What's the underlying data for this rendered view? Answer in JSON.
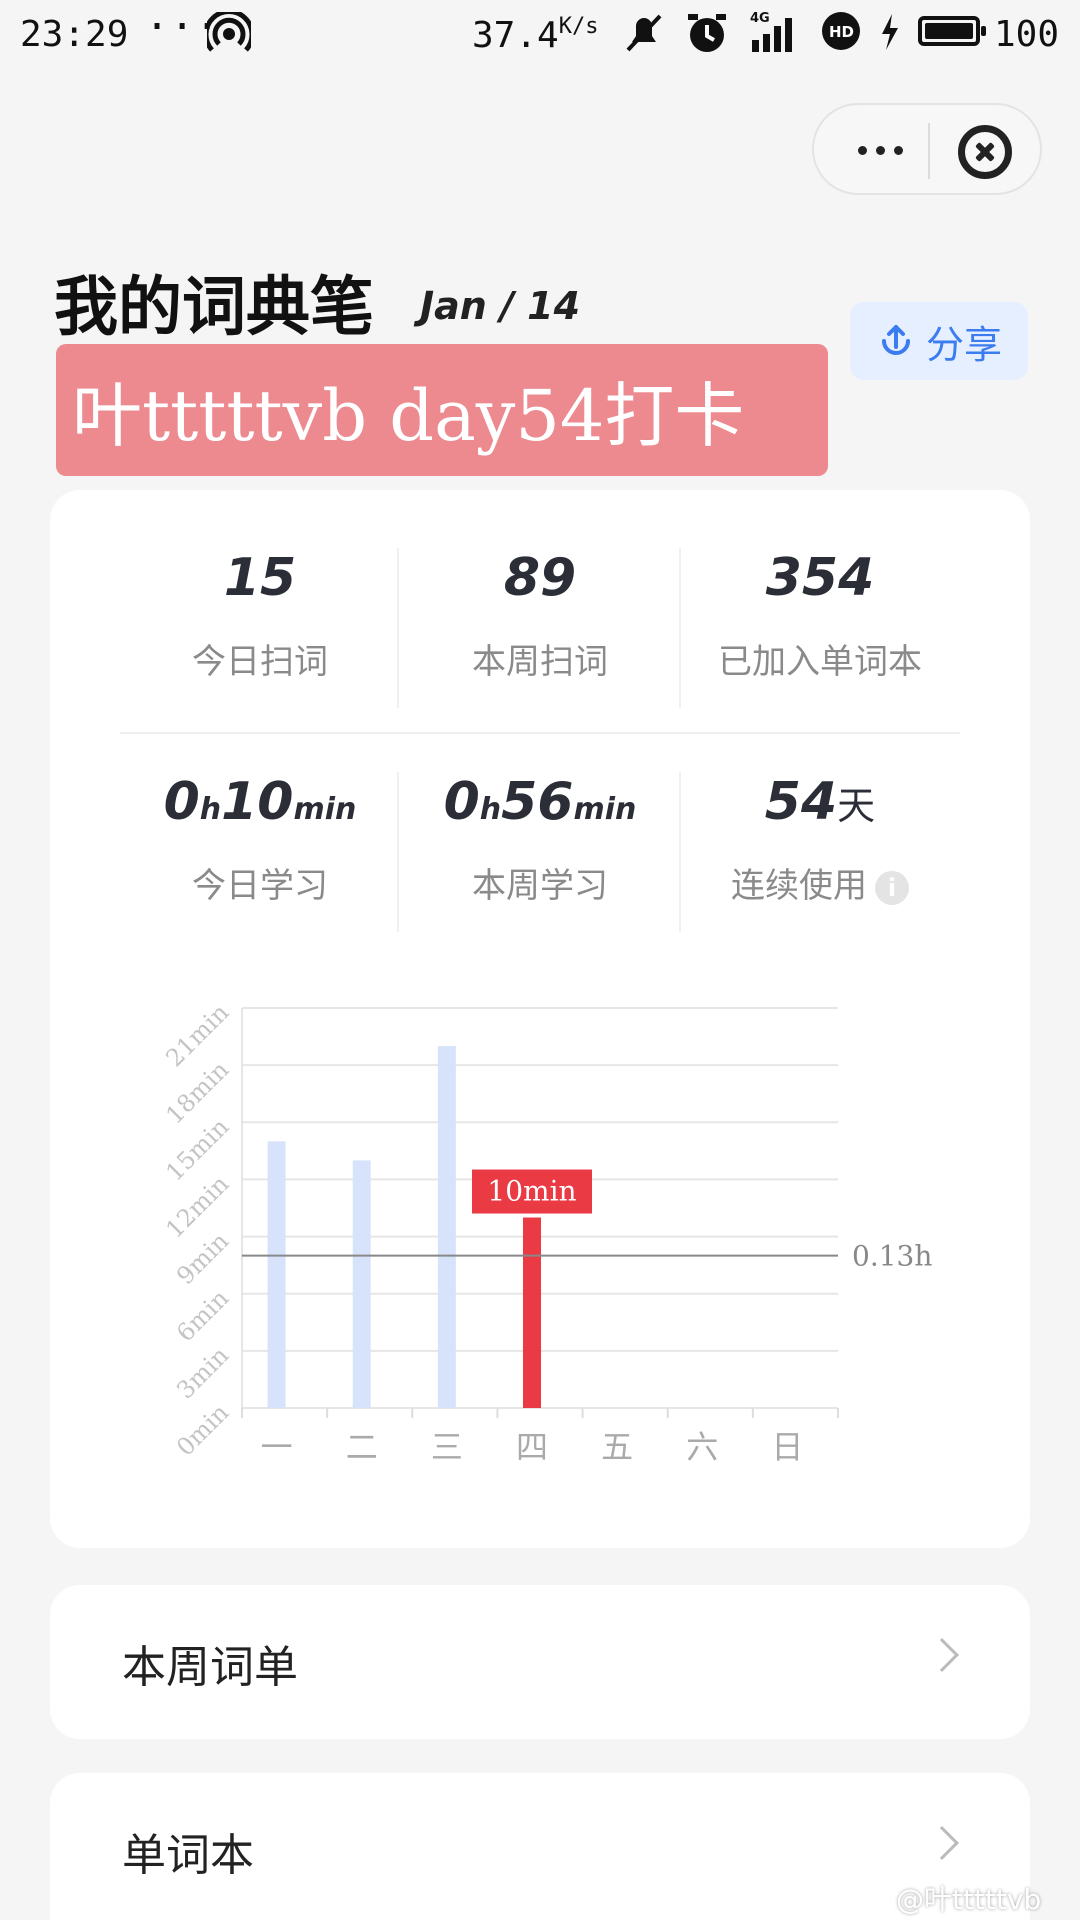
{
  "status_bar": {
    "time": "23:29",
    "more": "···",
    "speed": "37.4",
    "speed_unit": "K/s",
    "network": "4G",
    "battery": "100"
  },
  "header": {
    "title": "我的词典笔",
    "date": "Jan / 14",
    "share_label": "分享"
  },
  "checkin_banner": "叶tttttvb day54打卡",
  "stats": {
    "today_scan": {
      "value": "15",
      "label": "今日扫词"
    },
    "week_scan": {
      "value": "89",
      "label": "本周扫词"
    },
    "wordbook": {
      "value": "354",
      "label": "已加入单词本"
    },
    "today_study": {
      "hours": "0",
      "h": "h",
      "minutes": "10",
      "min": "min",
      "label": "今日学习"
    },
    "week_study": {
      "hours": "0",
      "h": "h",
      "minutes": "56",
      "min": "min",
      "label": "本周学习"
    },
    "streak": {
      "value": "54",
      "unit": "天",
      "label": "连续使用"
    }
  },
  "chart_data": {
    "type": "bar",
    "categories": [
      "一",
      "二",
      "三",
      "四",
      "五",
      "六",
      "日"
    ],
    "values": [
      14,
      13,
      19,
      10,
      0,
      0,
      0
    ],
    "highlight_index": 3,
    "highlight_label": "10min",
    "y_ticks": [
      "0min",
      "3min",
      "6min",
      "9min",
      "12min",
      "15min",
      "18min",
      "21min"
    ],
    "ylim": [
      0,
      21
    ],
    "average_line": 8,
    "average_label": "0.13h",
    "colors": {
      "bar": "#d6e3fb",
      "highlight": "#ea3a43",
      "grid": "#e6e6e6",
      "avg": "#888888"
    }
  },
  "lists": {
    "week_words": "本周词单",
    "wordbook": "单词本"
  },
  "watermark": "@叶tttttvb"
}
